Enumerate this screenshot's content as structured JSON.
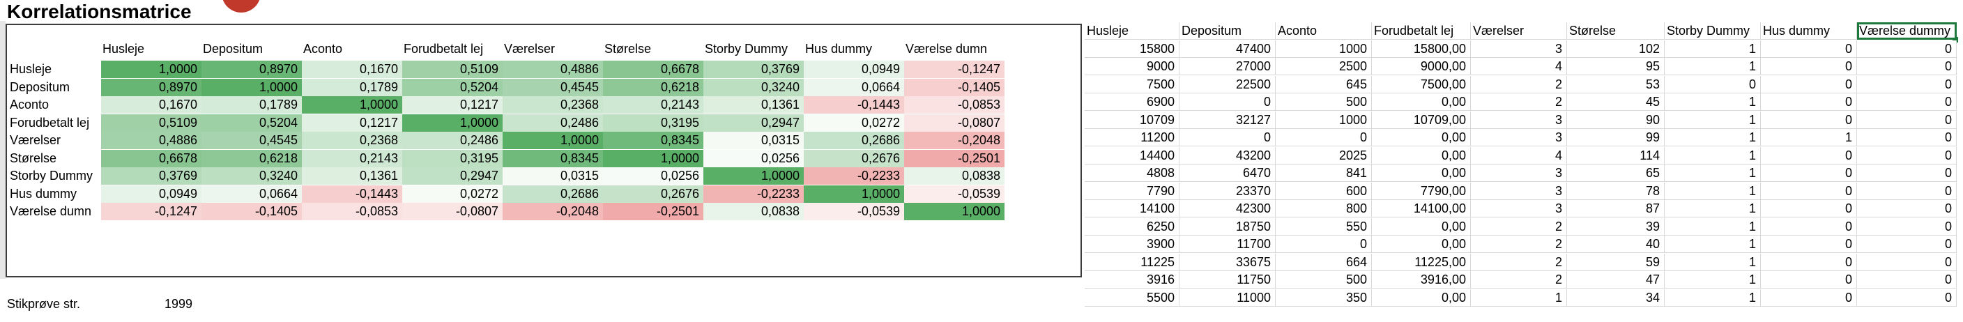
{
  "title": "Korrelationsmatrice",
  "matrix": {
    "headers": [
      "Husleje",
      "Depositum",
      "Aconto",
      "Forudbetalt leje",
      "Værelser",
      "Størelse",
      "Storby Dummy",
      "Hus dummy",
      "Værelse dummy"
    ],
    "header_display": [
      "Husleje",
      "Depositum",
      "Aconto",
      "Forudbetalt lej",
      "Værelser",
      "Størelse",
      "Storby Dummy",
      "Hus dummy",
      "Værelse dumn"
    ],
    "row_labels": [
      "Husleje",
      "Depositum",
      "Aconto",
      "Forudbetalt lej",
      "Værelser",
      "Størelse",
      "Storby Dummy",
      "Hus dummy",
      "Værelse dumn"
    ],
    "values": [
      [
        1.0,
        0.897,
        0.167,
        0.5109,
        0.4886,
        0.6678,
        0.3769,
        0.0949,
        -0.1247
      ],
      [
        0.897,
        1.0,
        0.1789,
        0.5204,
        0.4545,
        0.6218,
        0.324,
        0.0664,
        -0.1405
      ],
      [
        0.167,
        0.1789,
        1.0,
        0.1217,
        0.2368,
        0.2143,
        0.1361,
        -0.1443,
        -0.0853
      ],
      [
        0.5109,
        0.5204,
        0.1217,
        1.0,
        0.2486,
        0.3195,
        0.2947,
        0.0272,
        -0.0807
      ],
      [
        0.4886,
        0.4545,
        0.2368,
        0.2486,
        1.0,
        0.8345,
        0.0315,
        0.2686,
        -0.2048
      ],
      [
        0.6678,
        0.6218,
        0.2143,
        0.3195,
        0.8345,
        1.0,
        0.0256,
        0.2676,
        -0.2501
      ],
      [
        0.3769,
        0.324,
        0.1361,
        0.2947,
        0.0315,
        0.0256,
        1.0,
        -0.2233,
        0.0838
      ],
      [
        0.0949,
        0.0664,
        -0.1443,
        0.0272,
        0.2686,
        0.2676,
        -0.2233,
        1.0,
        -0.0539
      ],
      [
        -0.1247,
        -0.1405,
        -0.0853,
        -0.0807,
        -0.2048,
        -0.2501,
        0.0838,
        -0.0539,
        1.0
      ]
    ],
    "colors": {
      "positive": "#5aaf67",
      "negative": "#f3b3b3",
      "neutral": "#ffffff"
    }
  },
  "sample": {
    "label": "Stikprøve str.",
    "value": "1999"
  },
  "data_table": {
    "headers": [
      "Husleje",
      "Depositum",
      "Aconto",
      "Forudbetalt lej",
      "Værelser",
      "Størelse",
      "Storby Dummy",
      "Hus dummy",
      "Værelse dummy"
    ],
    "selected_header": "Værelse dummy",
    "rows": [
      [
        "15800",
        "47400",
        "1000",
        "15800,00",
        "3",
        "102",
        "1",
        "0",
        "0"
      ],
      [
        "9000",
        "27000",
        "2500",
        "9000,00",
        "4",
        "95",
        "1",
        "0",
        "0"
      ],
      [
        "7500",
        "22500",
        "645",
        "7500,00",
        "2",
        "53",
        "0",
        "0",
        "0"
      ],
      [
        "6900",
        "0",
        "500",
        "0,00",
        "2",
        "45",
        "1",
        "0",
        "0"
      ],
      [
        "10709",
        "32127",
        "1000",
        "10709,00",
        "3",
        "90",
        "1",
        "0",
        "0"
      ],
      [
        "11200",
        "0",
        "0",
        "0,00",
        "3",
        "99",
        "1",
        "1",
        "0"
      ],
      [
        "14400",
        "43200",
        "2025",
        "0,00",
        "4",
        "114",
        "1",
        "0",
        "0"
      ],
      [
        "4808",
        "6470",
        "841",
        "0,00",
        "3",
        "65",
        "1",
        "0",
        "0"
      ],
      [
        "7790",
        "23370",
        "600",
        "7790,00",
        "3",
        "78",
        "1",
        "0",
        "0"
      ],
      [
        "14100",
        "42300",
        "800",
        "14100,00",
        "3",
        "87",
        "1",
        "0",
        "0"
      ],
      [
        "6250",
        "18750",
        "550",
        "0,00",
        "2",
        "39",
        "1",
        "0",
        "0"
      ],
      [
        "3900",
        "11700",
        "0",
        "0,00",
        "2",
        "40",
        "1",
        "0",
        "0"
      ],
      [
        "11225",
        "33675",
        "664",
        "11225,00",
        "2",
        "59",
        "1",
        "0",
        "0"
      ],
      [
        "3916",
        "11750",
        "500",
        "3916,00",
        "2",
        "47",
        "1",
        "0",
        "0"
      ],
      [
        "5500",
        "11000",
        "350",
        "0,00",
        "1",
        "34",
        "1",
        "0",
        "0"
      ]
    ]
  }
}
